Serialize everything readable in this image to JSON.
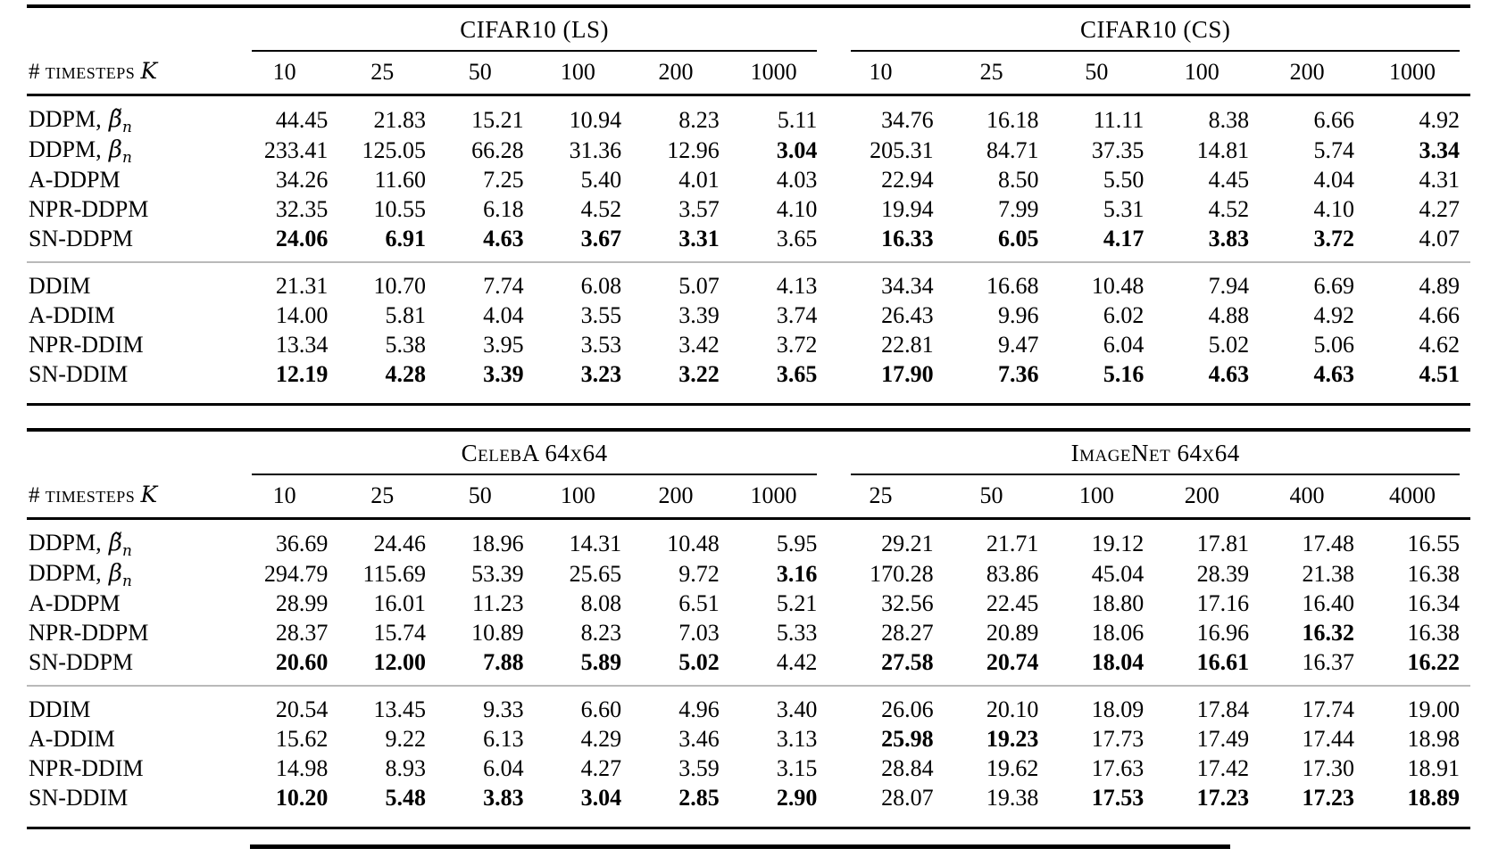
{
  "page": {
    "background": "#ffffff",
    "text_color": "#000000",
    "rule_color": "#000000",
    "mid_rule_color": "#b9b9b9"
  },
  "tables": [
    {
      "row_header": {
        "prefix": "#",
        "text": "timesteps",
        "var": "K"
      },
      "groups": [
        {
          "title": "CIFAR10 (LS)",
          "columns": [
            "10",
            "25",
            "50",
            "100",
            "200",
            "1000"
          ]
        },
        {
          "title": "CIFAR10 (CS)",
          "columns": [
            "10",
            "25",
            "50",
            "100",
            "200",
            "1000"
          ]
        }
      ],
      "sections": [
        {
          "name": "ddpm",
          "rows": [
            {
              "label": "DDPM,",
              "math": "β̃",
              "sub": "n",
              "values": [
                "44.45",
                "21.83",
                "15.21",
                "10.94",
                "8.23",
                "5.11",
                "34.76",
                "16.18",
                "11.11",
                "8.38",
                "6.66",
                "4.92"
              ],
              "bold": [
                0,
                0,
                0,
                0,
                0,
                0,
                0,
                0,
                0,
                0,
                0,
                0
              ]
            },
            {
              "label": "DDPM,",
              "math": "β",
              "sub": "n",
              "values": [
                "233.41",
                "125.05",
                "66.28",
                "31.36",
                "12.96",
                "3.04",
                "205.31",
                "84.71",
                "37.35",
                "14.81",
                "5.74",
                "3.34"
              ],
              "bold": [
                0,
                0,
                0,
                0,
                0,
                1,
                0,
                0,
                0,
                0,
                0,
                1
              ]
            },
            {
              "label": "A-DDPM",
              "values": [
                "34.26",
                "11.60",
                "7.25",
                "5.40",
                "4.01",
                "4.03",
                "22.94",
                "8.50",
                "5.50",
                "4.45",
                "4.04",
                "4.31"
              ],
              "bold": [
                0,
                0,
                0,
                0,
                0,
                0,
                0,
                0,
                0,
                0,
                0,
                0
              ]
            },
            {
              "label": "NPR-DDPM",
              "values": [
                "32.35",
                "10.55",
                "6.18",
                "4.52",
                "3.57",
                "4.10",
                "19.94",
                "7.99",
                "5.31",
                "4.52",
                "4.10",
                "4.27"
              ],
              "bold": [
                0,
                0,
                0,
                0,
                0,
                0,
                0,
                0,
                0,
                0,
                0,
                0
              ]
            },
            {
              "label": "SN-DDPM",
              "values": [
                "24.06",
                "6.91",
                "4.63",
                "3.67",
                "3.31",
                "3.65",
                "16.33",
                "6.05",
                "4.17",
                "3.83",
                "3.72",
                "4.07"
              ],
              "bold": [
                1,
                1,
                1,
                1,
                1,
                0,
                1,
                1,
                1,
                1,
                1,
                0
              ]
            }
          ]
        },
        {
          "name": "ddim",
          "rows": [
            {
              "label": "DDIM",
              "values": [
                "21.31",
                "10.70",
                "7.74",
                "6.08",
                "5.07",
                "4.13",
                "34.34",
                "16.68",
                "10.48",
                "7.94",
                "6.69",
                "4.89"
              ],
              "bold": [
                0,
                0,
                0,
                0,
                0,
                0,
                0,
                0,
                0,
                0,
                0,
                0
              ]
            },
            {
              "label": "A-DDIM",
              "values": [
                "14.00",
                "5.81",
                "4.04",
                "3.55",
                "3.39",
                "3.74",
                "26.43",
                "9.96",
                "6.02",
                "4.88",
                "4.92",
                "4.66"
              ],
              "bold": [
                0,
                0,
                0,
                0,
                0,
                0,
                0,
                0,
                0,
                0,
                0,
                0
              ]
            },
            {
              "label": "NPR-DDIM",
              "values": [
                "13.34",
                "5.38",
                "3.95",
                "3.53",
                "3.42",
                "3.72",
                "22.81",
                "9.47",
                "6.04",
                "5.02",
                "5.06",
                "4.62"
              ],
              "bold": [
                0,
                0,
                0,
                0,
                0,
                0,
                0,
                0,
                0,
                0,
                0,
                0
              ]
            },
            {
              "label": "SN-DDIM",
              "values": [
                "12.19",
                "4.28",
                "3.39",
                "3.23",
                "3.22",
                "3.65",
                "17.90",
                "7.36",
                "5.16",
                "4.63",
                "4.63",
                "4.51"
              ],
              "bold": [
                1,
                1,
                1,
                1,
                1,
                1,
                1,
                1,
                1,
                1,
                1,
                1
              ]
            }
          ]
        }
      ]
    },
    {
      "row_header": {
        "prefix": "#",
        "text": "timesteps",
        "var": "K"
      },
      "groups": [
        {
          "title": "CelebA 64x64",
          "columns": [
            "10",
            "25",
            "50",
            "100",
            "200",
            "1000"
          ]
        },
        {
          "title": "ImageNet 64x64",
          "columns": [
            "25",
            "50",
            "100",
            "200",
            "400",
            "4000"
          ]
        }
      ],
      "sections": [
        {
          "name": "ddpm",
          "rows": [
            {
              "label": "DDPM,",
              "math": "β̃",
              "sub": "n",
              "values": [
                "36.69",
                "24.46",
                "18.96",
                "14.31",
                "10.48",
                "5.95",
                "29.21",
                "21.71",
                "19.12",
                "17.81",
                "17.48",
                "16.55"
              ],
              "bold": [
                0,
                0,
                0,
                0,
                0,
                0,
                0,
                0,
                0,
                0,
                0,
                0
              ]
            },
            {
              "label": "DDPM,",
              "math": "β",
              "sub": "n",
              "values": [
                "294.79",
                "115.69",
                "53.39",
                "25.65",
                "9.72",
                "3.16",
                "170.28",
                "83.86",
                "45.04",
                "28.39",
                "21.38",
                "16.38"
              ],
              "bold": [
                0,
                0,
                0,
                0,
                0,
                1,
                0,
                0,
                0,
                0,
                0,
                0
              ]
            },
            {
              "label": "A-DDPM",
              "values": [
                "28.99",
                "16.01",
                "11.23",
                "8.08",
                "6.51",
                "5.21",
                "32.56",
                "22.45",
                "18.80",
                "17.16",
                "16.40",
                "16.34"
              ],
              "bold": [
                0,
                0,
                0,
                0,
                0,
                0,
                0,
                0,
                0,
                0,
                0,
                0
              ]
            },
            {
              "label": "NPR-DDPM",
              "values": [
                "28.37",
                "15.74",
                "10.89",
                "8.23",
                "7.03",
                "5.33",
                "28.27",
                "20.89",
                "18.06",
                "16.96",
                "16.32",
                "16.38"
              ],
              "bold": [
                0,
                0,
                0,
                0,
                0,
                0,
                0,
                0,
                0,
                0,
                1,
                0
              ]
            },
            {
              "label": "SN-DDPM",
              "values": [
                "20.60",
                "12.00",
                "7.88",
                "5.89",
                "5.02",
                "4.42",
                "27.58",
                "20.74",
                "18.04",
                "16.61",
                "16.37",
                "16.22"
              ],
              "bold": [
                1,
                1,
                1,
                1,
                1,
                0,
                1,
                1,
                1,
                1,
                0,
                1
              ]
            }
          ]
        },
        {
          "name": "ddim",
          "rows": [
            {
              "label": "DDIM",
              "values": [
                "20.54",
                "13.45",
                "9.33",
                "6.60",
                "4.96",
                "3.40",
                "26.06",
                "20.10",
                "18.09",
                "17.84",
                "17.74",
                "19.00"
              ],
              "bold": [
                0,
                0,
                0,
                0,
                0,
                0,
                0,
                0,
                0,
                0,
                0,
                0
              ]
            },
            {
              "label": "A-DDIM",
              "values": [
                "15.62",
                "9.22",
                "6.13",
                "4.29",
                "3.46",
                "3.13",
                "25.98",
                "19.23",
                "17.73",
                "17.49",
                "17.44",
                "18.98"
              ],
              "bold": [
                0,
                0,
                0,
                0,
                0,
                0,
                1,
                1,
                0,
                0,
                0,
                0
              ]
            },
            {
              "label": "NPR-DDIM",
              "values": [
                "14.98",
                "8.93",
                "6.04",
                "4.27",
                "3.59",
                "3.15",
                "28.84",
                "19.62",
                "17.63",
                "17.42",
                "17.30",
                "18.91"
              ],
              "bold": [
                0,
                0,
                0,
                0,
                0,
                0,
                0,
                0,
                0,
                0,
                0,
                0
              ]
            },
            {
              "label": "SN-DDIM",
              "values": [
                "10.20",
                "5.48",
                "3.83",
                "3.04",
                "2.85",
                "2.90",
                "28.07",
                "19.38",
                "17.53",
                "17.23",
                "17.23",
                "18.89"
              ],
              "bold": [
                1,
                1,
                1,
                1,
                1,
                1,
                0,
                0,
                1,
                1,
                1,
                1
              ]
            }
          ]
        }
      ]
    }
  ],
  "partial_next_table_rule": true
}
